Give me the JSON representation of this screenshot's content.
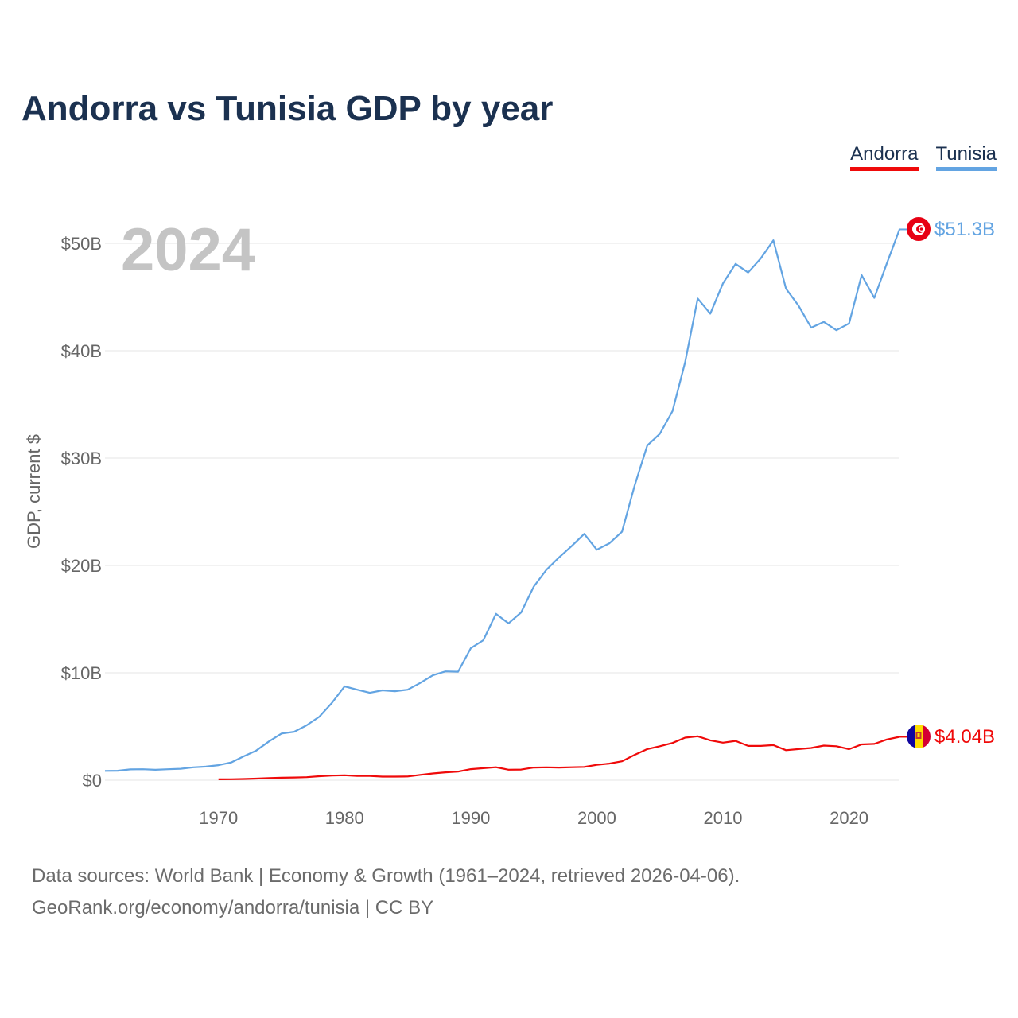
{
  "chart_data": {
    "type": "line",
    "title": "Andorra vs Tunisia GDP by year",
    "year_label": "2024",
    "ylabel": "GDP, current $",
    "xlabel": "",
    "ylim": [
      0,
      55
    ],
    "xlim": [
      1961,
      2024
    ],
    "yticks": [
      0,
      10,
      20,
      30,
      40,
      50
    ],
    "ytick_labels": [
      "$0",
      "$10B",
      "$20B",
      "$30B",
      "$40B",
      "$50B"
    ],
    "xticks": [
      1970,
      1980,
      1990,
      2000,
      2010,
      2020
    ],
    "xtick_labels": [
      "1970",
      "1980",
      "1990",
      "2000",
      "2010",
      "2020"
    ],
    "legend": [
      "Andorra",
      "Tunisia"
    ],
    "series": [
      {
        "name": "Andorra",
        "color": "#ef0a0a",
        "end_label": "$4.04B",
        "start_year": 1970,
        "values": [
          0.08,
          0.09,
          0.11,
          0.15,
          0.19,
          0.23,
          0.25,
          0.28,
          0.37,
          0.43,
          0.46,
          0.39,
          0.39,
          0.33,
          0.33,
          0.35,
          0.5,
          0.63,
          0.73,
          0.8,
          1.03,
          1.12,
          1.21,
          0.98,
          0.99,
          1.18,
          1.2,
          1.18,
          1.21,
          1.24,
          1.43,
          1.55,
          1.76,
          2.36,
          2.9,
          3.16,
          3.47,
          3.96,
          4.09,
          3.71,
          3.5,
          3.66,
          3.19,
          3.19,
          3.27,
          2.79,
          2.9,
          3.0,
          3.22,
          3.16,
          2.89,
          3.33,
          3.38,
          3.79,
          4.04
        ]
      },
      {
        "name": "Tunisia",
        "color": "#63a4e2",
        "end_label": "$51.3B",
        "start_year": 1961,
        "values": [
          0.87,
          0.88,
          1.01,
          1.02,
          0.97,
          1.02,
          1.07,
          1.2,
          1.27,
          1.4,
          1.65,
          2.22,
          2.76,
          3.61,
          4.35,
          4.51,
          5.12,
          5.92,
          7.21,
          8.74,
          8.43,
          8.14,
          8.37,
          8.29,
          8.43,
          9.06,
          9.77,
          10.13,
          10.1,
          12.29,
          13.04,
          15.5,
          14.61,
          15.63,
          18.03,
          19.59,
          20.75,
          21.8,
          22.94,
          21.47,
          22.07,
          23.14,
          27.45,
          31.18,
          32.27,
          34.38,
          38.91,
          44.86,
          43.45,
          46.27,
          48.09,
          47.28,
          48.6,
          50.28,
          45.78,
          44.19,
          42.15,
          42.68,
          41.91,
          42.54,
          47.04,
          44.92,
          48.14,
          51.3
        ]
      }
    ],
    "sources_line1": "Data sources: World Bank | Economy & Growth (1961–2024, retrieved 2026-04-06).",
    "sources_line2": "GeoRank.org/economy/andorra/tunisia | CC BY"
  }
}
